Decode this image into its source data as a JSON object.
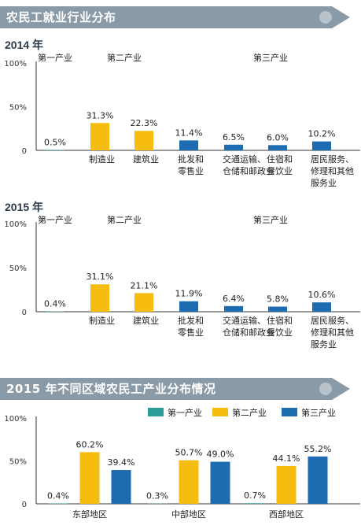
{
  "title_2014_section": "农民工就业行业分布",
  "title_region_section": "2015 年不同区域农民工产业分布情况",
  "year_2014": "2014 年",
  "year_2015": "2015 年",
  "colors": {
    "banner": "#8a9aa6",
    "primary": "#2a9d9a",
    "secondary": "#f5bd0f",
    "tertiary": "#1d6bb0",
    "axis": "#333333"
  },
  "chart_data": [
    {
      "type": "bar",
      "title": "2014 年",
      "ylim": [
        0,
        100
      ],
      "yticks": [
        "100%",
        "50%",
        "0"
      ],
      "groups": [
        "第一产业",
        "第二产业",
        "第三产业"
      ],
      "categories": [
        "",
        "制造业",
        "建筑业",
        "批发和零售业",
        "交通运输、仓储和邮政业",
        "住宿和餐饮业",
        "居民服务、修理和其他服务业"
      ],
      "category_lines": [
        [],
        [
          "制造业"
        ],
        [
          "建筑业"
        ],
        [
          "批发和",
          "零售业"
        ],
        [
          "交通运输、",
          "仓储和邮政业"
        ],
        [
          "住宿和",
          "餐饮业"
        ],
        [
          "居民服务、",
          "修理和其他",
          "服务业"
        ]
      ],
      "group_of": [
        "第一产业",
        "第二产业",
        "第二产业",
        "第三产业",
        "第三产业",
        "第三产业",
        "第三产业"
      ],
      "values": [
        0.5,
        31.3,
        22.3,
        11.4,
        6.5,
        6.0,
        10.2
      ],
      "labels": [
        "0.5%",
        "31.3%",
        "22.3%",
        "11.4%",
        "6.5%",
        "6.0%",
        "10.2%"
      ]
    },
    {
      "type": "bar",
      "title": "2015 年",
      "ylim": [
        0,
        100
      ],
      "yticks": [
        "100%",
        "50%",
        "0"
      ],
      "groups": [
        "第一产业",
        "第二产业",
        "第三产业"
      ],
      "categories": [
        "",
        "制造业",
        "建筑业",
        "批发和零售业",
        "交通运输、仓储和邮政业",
        "住宿和餐饮业",
        "居民服务、修理和其他服务业"
      ],
      "category_lines": [
        [],
        [
          "制造业"
        ],
        [
          "建筑业"
        ],
        [
          "批发和",
          "零售业"
        ],
        [
          "交通运输、",
          "仓储和邮政业"
        ],
        [
          "住宿和",
          "餐饮业"
        ],
        [
          "居民服务、",
          "修理和其他",
          "服务业"
        ]
      ],
      "group_of": [
        "第一产业",
        "第二产业",
        "第二产业",
        "第三产业",
        "第三产业",
        "第三产业",
        "第三产业"
      ],
      "values": [
        0.4,
        31.1,
        21.1,
        11.9,
        6.4,
        5.8,
        10.6
      ],
      "labels": [
        "0.4%",
        "31.1%",
        "21.1%",
        "11.9%",
        "6.4%",
        "5.8%",
        "10.6%"
      ]
    },
    {
      "type": "bar",
      "title": "2015 年不同区域农民工产业分布情况",
      "ylim": [
        0,
        100
      ],
      "yticks": [
        "100%",
        "50%",
        "0"
      ],
      "categories": [
        "东部地区",
        "中部地区",
        "西部地区"
      ],
      "legend": "top-right",
      "series": [
        {
          "name": "第一产业",
          "values": [
            0.4,
            0.3,
            0.7
          ],
          "labels": [
            "0.4%",
            "0.3%",
            "0.7%"
          ]
        },
        {
          "name": "第二产业",
          "values": [
            60.2,
            50.7,
            44.1
          ],
          "labels": [
            "60.2%",
            "50.7%",
            "44.1%"
          ]
        },
        {
          "name": "第三产业",
          "values": [
            39.4,
            49.0,
            55.2
          ],
          "labels": [
            "39.4%",
            "49.0%",
            "55.2%"
          ]
        }
      ]
    }
  ]
}
